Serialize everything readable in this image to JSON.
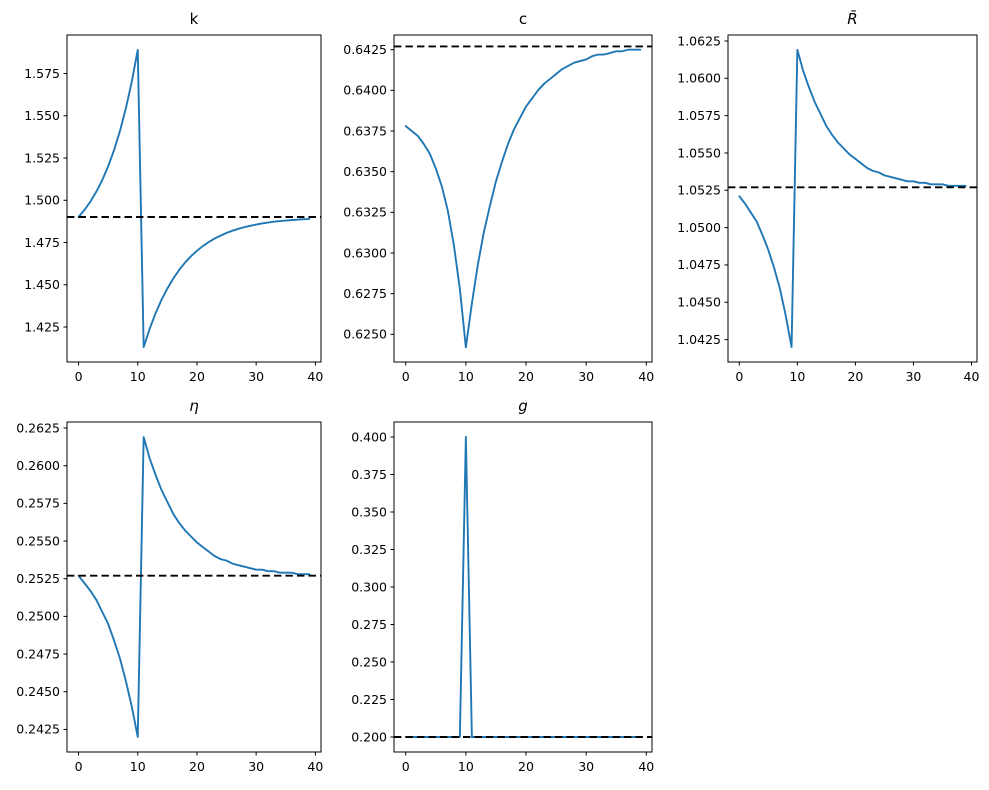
{
  "figure": {
    "background_color": "#ffffff",
    "series_color": "#1f77b4",
    "steady_state_line_color": "#000000",
    "axis_color": "#000000"
  },
  "chart_data": {
    "type": "line",
    "layout": "2x3 grid, five subplots, bottom-right cell empty",
    "grid": false,
    "legend": null,
    "x_shared": [
      0,
      1,
      2,
      3,
      4,
      5,
      6,
      7,
      8,
      9,
      10,
      11,
      12,
      13,
      14,
      15,
      16,
      17,
      18,
      19,
      20,
      21,
      22,
      23,
      24,
      25,
      26,
      27,
      28,
      29,
      30,
      31,
      32,
      33,
      34,
      35,
      36,
      37,
      38,
      39
    ],
    "xlim": [
      -1.95,
      40.95
    ],
    "xticks": {
      "values": [
        0,
        10,
        20,
        30,
        40
      ],
      "labels": [
        "0",
        "10",
        "20",
        "30",
        "40"
      ]
    },
    "panels": [
      {
        "title": "k",
        "title_style": "normal",
        "xlabel": "",
        "ylabel": "",
        "ylim": [
          1.4043,
          1.5978
        ],
        "yticks": {
          "values": [
            1.425,
            1.45,
            1.475,
            1.5,
            1.525,
            1.55,
            1.575
          ],
          "labels": [
            "1.425",
            "1.450",
            "1.475",
            "1.500",
            "1.525",
            "1.550",
            "1.575"
          ]
        },
        "steady_state": {
          "value": 1.4901,
          "style": "dashed",
          "color": "#000000"
        },
        "series": [
          {
            "name": "k-transition-path",
            "color": "#1f77b4",
            "values": [
              1.4901,
              1.4943,
              1.4992,
              1.5051,
              1.5119,
              1.5201,
              1.5297,
              1.5411,
              1.5545,
              1.5703,
              1.589,
              1.4131,
              1.4238,
              1.4331,
              1.441,
              1.4478,
              1.4537,
              1.4588,
              1.4632,
              1.4669,
              1.4701,
              1.4729,
              1.4753,
              1.4774,
              1.4791,
              1.4807,
              1.482,
              1.4831,
              1.4841,
              1.4849,
              1.4856,
              1.4863,
              1.4868,
              1.4873,
              1.4877,
              1.488,
              1.4883,
              1.4885,
              1.4888,
              1.4889
            ]
          }
        ]
      },
      {
        "title": "c",
        "title_style": "normal",
        "xlabel": "",
        "ylabel": "",
        "ylim": [
          0.6233,
          0.6434
        ],
        "yticks": {
          "values": [
            0.625,
            0.6275,
            0.63,
            0.6325,
            0.635,
            0.6375,
            0.64,
            0.6425
          ],
          "labels": [
            "0.6250",
            "0.6275",
            "0.6300",
            "0.6325",
            "0.6350",
            "0.6375",
            "0.6400",
            "0.6425"
          ]
        },
        "steady_state": {
          "value": 0.6427,
          "style": "dashed",
          "color": "#000000"
        },
        "series": [
          {
            "name": "c-transition-path",
            "color": "#1f77b4",
            "values": [
              0.6378,
              0.6375,
              0.6372,
              0.6367,
              0.6361,
              0.6352,
              0.6341,
              0.6326,
              0.6305,
              0.6278,
              0.6242,
              0.6269,
              0.6293,
              0.6313,
              0.6329,
              0.6344,
              0.6356,
              0.6367,
              0.6376,
              0.6383,
              0.639,
              0.6395,
              0.64,
              0.6404,
              0.6407,
              0.641,
              0.6413,
              0.6415,
              0.6417,
              0.6418,
              0.6419,
              0.6421,
              0.6422,
              0.6422,
              0.6423,
              0.6424,
              0.6424,
              0.6425,
              0.6425,
              0.6425
            ]
          }
        ]
      },
      {
        "title": "R̄",
        "title_style": "italic",
        "xlabel": "",
        "ylabel": "",
        "ylim": [
          1.041,
          1.0629
        ],
        "yticks": {
          "values": [
            1.0425,
            1.045,
            1.0475,
            1.05,
            1.0525,
            1.055,
            1.0575,
            1.06,
            1.0625
          ],
          "labels": [
            "1.0425",
            "1.0450",
            "1.0475",
            "1.0500",
            "1.0525",
            "1.0550",
            "1.0575",
            "1.0600",
            "1.0625"
          ]
        },
        "steady_state": {
          "value": 1.0527,
          "style": "dashed",
          "color": "#000000"
        },
        "series": [
          {
            "name": "Rbar-transition-path",
            "color": "#1f77b4",
            "values": [
              1.0521,
              1.0516,
              1.051,
              1.0504,
              1.0495,
              1.0485,
              1.0473,
              1.0459,
              1.0441,
              1.042,
              1.0619,
              1.0605,
              1.0594,
              1.0584,
              1.0576,
              1.0568,
              1.0562,
              1.0557,
              1.0553,
              1.0549,
              1.0546,
              1.0543,
              1.054,
              1.0538,
              1.0537,
              1.0535,
              1.0534,
              1.0533,
              1.0532,
              1.0531,
              1.0531,
              1.053,
              1.053,
              1.0529,
              1.0529,
              1.0529,
              1.0528,
              1.0528,
              1.0528,
              1.0528
            ]
          }
        ]
      },
      {
        "title": "η",
        "title_style": "italic",
        "xlabel": "",
        "ylabel": "",
        "ylim": [
          0.241,
          0.2629
        ],
        "yticks": {
          "values": [
            0.2425,
            0.245,
            0.2475,
            0.25,
            0.2525,
            0.255,
            0.2575,
            0.26,
            0.2625
          ],
          "labels": [
            "0.2425",
            "0.2450",
            "0.2475",
            "0.2500",
            "0.2525",
            "0.2550",
            "0.2575",
            "0.2600",
            "0.2625"
          ]
        },
        "steady_state": {
          "value": 0.2527,
          "style": "dashed",
          "color": "#000000"
        },
        "series": [
          {
            "name": "eta-transition-path",
            "color": "#1f77b4",
            "values": [
              0.2527,
              0.2522,
              0.2517,
              0.2511,
              0.2503,
              0.2495,
              0.2484,
              0.2472,
              0.2457,
              0.244,
              0.242,
              0.2619,
              0.2605,
              0.2594,
              0.2584,
              0.2576,
              0.2568,
              0.2562,
              0.2557,
              0.2553,
              0.2549,
              0.2546,
              0.2543,
              0.254,
              0.2538,
              0.2537,
              0.2535,
              0.2534,
              0.2533,
              0.2532,
              0.2531,
              0.2531,
              0.253,
              0.253,
              0.2529,
              0.2529,
              0.2529,
              0.2528,
              0.2528,
              0.2528
            ]
          }
        ]
      },
      {
        "title": "g",
        "title_style": "italic",
        "xlabel": "",
        "ylabel": "",
        "ylim": [
          0.19,
          0.41
        ],
        "yticks": {
          "values": [
            0.2,
            0.225,
            0.25,
            0.275,
            0.3,
            0.325,
            0.35,
            0.375,
            0.4
          ],
          "labels": [
            "0.200",
            "0.225",
            "0.250",
            "0.275",
            "0.300",
            "0.325",
            "0.350",
            "0.375",
            "0.400"
          ]
        },
        "steady_state": {
          "value": 0.2,
          "style": "dashed",
          "color": "#000000"
        },
        "series": [
          {
            "name": "g-shock-path",
            "color": "#1f77b4",
            "values": [
              0.2,
              0.2,
              0.2,
              0.2,
              0.2,
              0.2,
              0.2,
              0.2,
              0.2,
              0.2,
              0.4,
              0.2,
              0.2,
              0.2,
              0.2,
              0.2,
              0.2,
              0.2,
              0.2,
              0.2,
              0.2,
              0.2,
              0.2,
              0.2,
              0.2,
              0.2,
              0.2,
              0.2,
              0.2,
              0.2,
              0.2,
              0.2,
              0.2,
              0.2,
              0.2,
              0.2,
              0.2,
              0.2,
              0.2,
              0.2
            ]
          }
        ]
      }
    ]
  }
}
